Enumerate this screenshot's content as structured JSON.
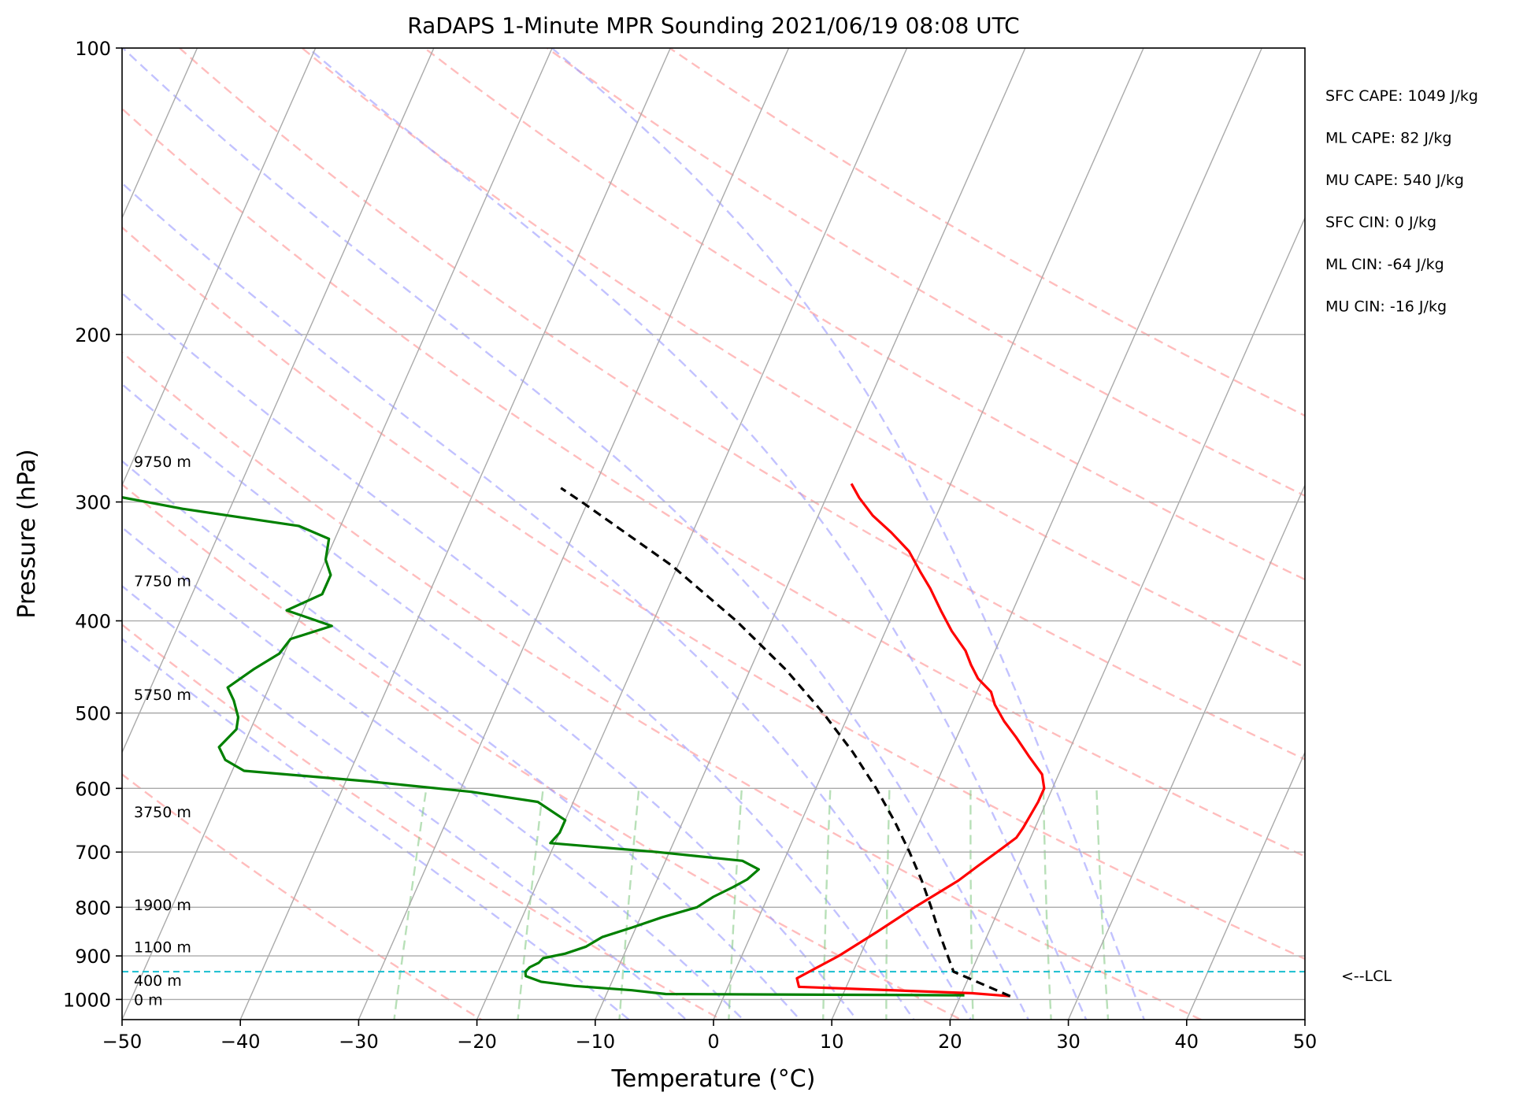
{
  "chart_data": {
    "type": "line",
    "title": "RaDAPS 1-Minute MPR Sounding 2021/06/19 08:08 UTC",
    "xlabel": "Temperature (°C)",
    "ylabel": "Pressure (hPa)",
    "xlim": [
      -50,
      50
    ],
    "ylim": [
      1050,
      100
    ],
    "y_scale": "log",
    "skew": "skew-T log-P",
    "x_ticks": [
      -50,
      -40,
      -30,
      -20,
      -10,
      0,
      10,
      20,
      30,
      40,
      50
    ],
    "x_tick_labels": [
      "−50",
      "−40",
      "−30",
      "−20",
      "−10",
      "0",
      "10",
      "20",
      "30",
      "40",
      "50"
    ],
    "y_ticks": [
      100,
      200,
      300,
      400,
      500,
      600,
      700,
      800,
      900,
      1000
    ],
    "y_tick_labels": [
      "100",
      "200",
      "300",
      "400",
      "500",
      "600",
      "700",
      "800",
      "900",
      "1000"
    ],
    "grid": true,
    "height_labels": [
      {
        "text": "0 m",
        "pressure": 1000
      },
      {
        "text": "400 m",
        "pressure": 955
      },
      {
        "text": "1100 m",
        "pressure": 880
      },
      {
        "text": "1900 m",
        "pressure": 795
      },
      {
        "text": "3750 m",
        "pressure": 635
      },
      {
        "text": "5750 m",
        "pressure": 478
      },
      {
        "text": "7750 m",
        "pressure": 363
      },
      {
        "text": "9750 m",
        "pressure": 272
      }
    ],
    "lcl": {
      "pressure": 935,
      "label": "<--LCL"
    },
    "indices": [
      "SFC CAPE: 1049 J/kg",
      "ML CAPE: 82 J/kg",
      "MU CAPE: 540 J/kg",
      "SFC CIN: 0 J/kg",
      "ML CIN: -64 J/kg",
      "MU CIN: -16 J/kg"
    ],
    "temperature": {
      "color": "#ff0000",
      "points": [
        [
          992,
          24.2
        ],
        [
          985,
          20.9
        ],
        [
          970,
          6.0
        ],
        [
          950,
          5.5
        ],
        [
          900,
          8.2
        ],
        [
          850,
          10.5
        ],
        [
          800,
          12.8
        ],
        [
          750,
          15.5
        ],
        [
          724,
          16.6
        ],
        [
          700,
          17.7
        ],
        [
          676,
          18.8
        ],
        [
          660,
          19.0
        ],
        [
          620,
          19.3
        ],
        [
          600,
          19.3
        ],
        [
          580,
          18.6
        ],
        [
          555,
          16.8
        ],
        [
          530,
          15.0
        ],
        [
          510,
          13.4
        ],
        [
          490,
          12.0
        ],
        [
          475,
          11.2
        ],
        [
          460,
          9.6
        ],
        [
          445,
          8.5
        ],
        [
          430,
          7.5
        ],
        [
          410,
          5.6
        ],
        [
          390,
          3.9
        ],
        [
          370,
          2.2
        ],
        [
          355,
          0.7
        ],
        [
          338,
          -1.0
        ],
        [
          323,
          -3.2
        ],
        [
          310,
          -5.4
        ],
        [
          297,
          -7.2
        ],
        [
          287,
          -8.4
        ]
      ]
    },
    "dewpoint": {
      "color": "#008000",
      "points": [
        [
          990,
          20.3
        ],
        [
          987,
          -5.0
        ],
        [
          978,
          -8.0
        ],
        [
          968,
          -13.0
        ],
        [
          958,
          -16.0
        ],
        [
          945,
          -17.5
        ],
        [
          935,
          -17.7
        ],
        [
          925,
          -17.5
        ],
        [
          915,
          -16.9
        ],
        [
          905,
          -16.7
        ],
        [
          895,
          -15.0
        ],
        [
          880,
          -13.5
        ],
        [
          860,
          -12.5
        ],
        [
          840,
          -10.3
        ],
        [
          820,
          -8.2
        ],
        [
          800,
          -5.6
        ],
        [
          780,
          -4.6
        ],
        [
          762,
          -3.3
        ],
        [
          748,
          -2.4
        ],
        [
          730,
          -1.8
        ],
        [
          715,
          -3.5
        ],
        [
          700,
          -11.0
        ],
        [
          685,
          -20.4
        ],
        [
          668,
          -20.0
        ],
        [
          648,
          -20.0
        ],
        [
          620,
          -23.0
        ],
        [
          605,
          -29.0
        ],
        [
          590,
          -38.0
        ],
        [
          575,
          -49.0
        ],
        [
          560,
          -51.0
        ],
        [
          543,
          -52.0
        ],
        [
          520,
          -51.2
        ],
        [
          505,
          -51.5
        ],
        [
          485,
          -52.5
        ],
        [
          470,
          -53.5
        ],
        [
          450,
          -52.0
        ],
        [
          433,
          -50.4
        ],
        [
          418,
          -50.0
        ],
        [
          405,
          -47.0
        ],
        [
          390,
          -51.4
        ],
        [
          375,
          -49.0
        ],
        [
          358,
          -49.0
        ],
        [
          345,
          -50.0
        ],
        [
          328,
          -50.5
        ],
        [
          318,
          -53.5
        ],
        [
          305,
          -64.0
        ],
        [
          296,
          -70.0
        ],
        [
          286,
          -70.3
        ]
      ]
    },
    "parcel": {
      "color": "#000000",
      "style": "dashed",
      "points": [
        [
          992,
          24.2
        ],
        [
          935,
          18.5
        ],
        [
          850,
          15.8
        ],
        [
          800,
          14.2
        ],
        [
          750,
          12.4
        ],
        [
          700,
          10.3
        ],
        [
          650,
          7.9
        ],
        [
          600,
          5.1
        ],
        [
          550,
          1.8
        ],
        [
          500,
          -2.2
        ],
        [
          450,
          -7.0
        ],
        [
          400,
          -13.0
        ],
        [
          350,
          -20.5
        ],
        [
          300,
          -30.5
        ],
        [
          290,
          -32.8
        ]
      ]
    },
    "dry_adiabats_theta_K": [
      250,
      270,
      290,
      310,
      330,
      350,
      370,
      390,
      410,
      430,
      450
    ],
    "moist_adiabats_T1000_C": [
      -10,
      -5,
      0,
      5,
      10,
      15,
      20,
      25,
      30,
      35
    ],
    "mixing_ratio_lines_g_kg": [
      0.4,
      1,
      2,
      4,
      7,
      10,
      16,
      24,
      32
    ],
    "legend": "none"
  }
}
